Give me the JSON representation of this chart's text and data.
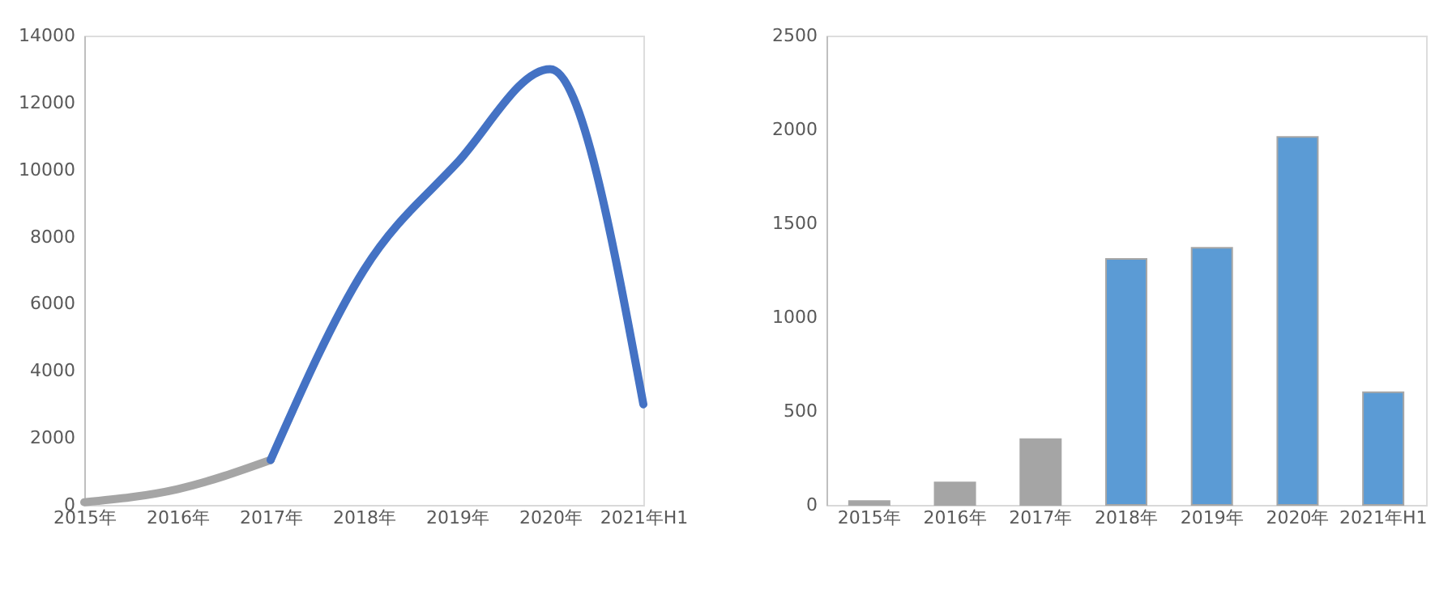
{
  "chart_data": [
    {
      "type": "line",
      "categories": [
        "2015年",
        "2016年",
        "2017年",
        "2018年",
        "2019年",
        "2020年",
        "2021年H1"
      ],
      "series": [
        {
          "color": "#a5a5a5",
          "values": [
            80,
            470,
            1340,
            null,
            null,
            null,
            null
          ]
        },
        {
          "color": "#4472c4",
          "values": [
            null,
            null,
            1340,
            7000,
            10200,
            13000,
            3000
          ]
        }
      ],
      "ylim": [
        0,
        14000
      ],
      "yticks": [
        0,
        2000,
        4000,
        6000,
        8000,
        10000,
        12000,
        14000
      ]
    },
    {
      "type": "bar",
      "categories": [
        "2015年",
        "2016年",
        "2017年",
        "2018年",
        "2019年",
        "2020年",
        "2021年H1"
      ],
      "values": [
        20,
        120,
        350,
        1310,
        1370,
        1960,
        600
      ],
      "colors": [
        "#a5a5a5",
        "#a5a5a5",
        "#a5a5a5",
        "#5b9bd5",
        "#5b9bd5",
        "#5b9bd5",
        "#5b9bd5"
      ],
      "ylim": [
        0,
        2500
      ],
      "yticks": [
        0,
        500,
        1000,
        1500,
        2000,
        2500
      ]
    }
  ]
}
